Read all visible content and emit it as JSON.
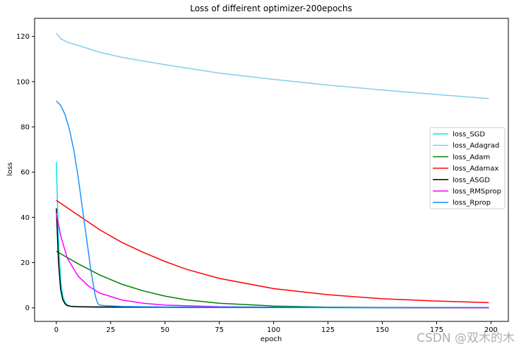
{
  "watermark": "CSDN @双木的木",
  "chart_data": {
    "type": "line",
    "title": "Loss of diffeirent optimizer-200epochs",
    "xlabel": "epoch",
    "ylabel": "loss",
    "xlim": [
      -10,
      208
    ],
    "ylim": [
      -6,
      128
    ],
    "xticks": [
      0,
      25,
      50,
      75,
      100,
      125,
      150,
      175,
      200
    ],
    "yticks": [
      0,
      20,
      40,
      60,
      80,
      100,
      120
    ],
    "grid": false,
    "legend_position": "right",
    "series": [
      {
        "name": "loss_SGD",
        "color": "#00e5ee",
        "x": [
          0,
          1,
          2,
          3,
          4,
          5,
          7,
          10,
          15,
          20,
          50,
          100,
          150,
          199
        ],
        "y": [
          64.5,
          30,
          12,
          5,
          2.5,
          1.2,
          0.6,
          0.4,
          0.3,
          0.2,
          0.15,
          0.1,
          0.05,
          0.05
        ]
      },
      {
        "name": "loss_Adagrad",
        "color": "#87ceeb",
        "x": [
          0,
          2,
          5,
          10,
          20,
          30,
          50,
          75,
          100,
          125,
          150,
          175,
          199
        ],
        "y": [
          121.5,
          119,
          117.5,
          116,
          113,
          110.8,
          107.5,
          103.8,
          101,
          98.5,
          96.3,
          94.3,
          92.5
        ]
      },
      {
        "name": "loss_Adam",
        "color": "#008000",
        "x": [
          0,
          10,
          20,
          30,
          40,
          50,
          60,
          75,
          100,
          125,
          150,
          175,
          199
        ],
        "y": [
          25,
          19.5,
          14.5,
          10.5,
          7.5,
          5.2,
          3.5,
          2,
          0.8,
          0.3,
          0.1,
          0.05,
          0.02
        ]
      },
      {
        "name": "loss_Adamax",
        "color": "#ff0000",
        "x": [
          0,
          10,
          20,
          30,
          40,
          50,
          60,
          75,
          100,
          125,
          150,
          175,
          199
        ],
        "y": [
          47.5,
          41,
          34.5,
          29,
          24.5,
          20.5,
          17,
          13,
          8.5,
          5.8,
          4,
          3,
          2.3
        ]
      },
      {
        "name": "loss_ASGD",
        "color": "#000000",
        "x": [
          0,
          1,
          2,
          3,
          4,
          5,
          7,
          10,
          20,
          50,
          100,
          150,
          199
        ],
        "y": [
          44,
          20,
          8,
          3.5,
          1.8,
          1,
          0.6,
          0.5,
          0.4,
          0.3,
          0.2,
          0.1,
          0.05
        ]
      },
      {
        "name": "loss_RMSprop",
        "color": "#ff00ff",
        "x": [
          0,
          2,
          5,
          10,
          15,
          20,
          30,
          40,
          50,
          75,
          100,
          150,
          199
        ],
        "y": [
          42,
          32,
          22,
          14,
          9.5,
          6.5,
          3.5,
          2,
          1.2,
          0.5,
          0.3,
          0.1,
          0.05
        ]
      },
      {
        "name": "loss_Rprop",
        "color": "#1e90ff",
        "x": [
          0,
          2,
          4,
          6,
          8,
          10,
          12,
          14,
          16,
          18,
          19,
          20,
          22,
          30,
          50,
          100,
          150,
          199
        ],
        "y": [
          91.5,
          89.5,
          85.5,
          79,
          70,
          58,
          44,
          30,
          16,
          5,
          2,
          1.2,
          1,
          0.6,
          0.4,
          0.3,
          0.2,
          0.2
        ]
      }
    ]
  }
}
